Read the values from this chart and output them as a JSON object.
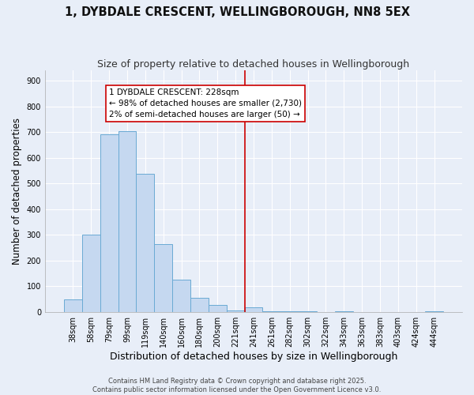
{
  "title": "1, DYBDALE CRESCENT, WELLINGBOROUGH, NN8 5EX",
  "subtitle": "Size of property relative to detached houses in Wellingborough",
  "xlabel": "Distribution of detached houses by size in Wellingborough",
  "ylabel": "Number of detached properties",
  "bar_labels": [
    "38sqm",
    "58sqm",
    "79sqm",
    "99sqm",
    "119sqm",
    "140sqm",
    "160sqm",
    "180sqm",
    "200sqm",
    "221sqm",
    "241sqm",
    "261sqm",
    "282sqm",
    "302sqm",
    "322sqm",
    "343sqm",
    "363sqm",
    "383sqm",
    "403sqm",
    "424sqm",
    "444sqm"
  ],
  "bar_values": [
    47,
    300,
    690,
    705,
    537,
    263,
    125,
    55,
    28,
    5,
    18,
    3,
    1,
    1,
    0,
    1,
    0,
    0,
    0,
    0,
    1
  ],
  "bar_color": "#c5d8f0",
  "bar_edge_color": "#6aaad4",
  "vline_x_index": 9,
  "vline_color": "#cc0000",
  "annotation_title": "1 DYBDALE CRESCENT: 228sqm",
  "annotation_line1": "← 98% of detached houses are smaller (2,730)",
  "annotation_line2": "2% of semi-detached houses are larger (50) →",
  "annotation_box_color": "#ffffff",
  "annotation_box_edge": "#cc0000",
  "ylim": [
    0,
    940
  ],
  "yticks": [
    0,
    100,
    200,
    300,
    400,
    500,
    600,
    700,
    800,
    900
  ],
  "background_color": "#e8eef8",
  "grid_color": "#ffffff",
  "footer_line1": "Contains HM Land Registry data © Crown copyright and database right 2025.",
  "footer_line2": "Contains public sector information licensed under the Open Government Licence v3.0.",
  "title_fontsize": 10.5,
  "subtitle_fontsize": 9,
  "xlabel_fontsize": 9,
  "ylabel_fontsize": 8.5,
  "tick_fontsize": 7,
  "footer_fontsize": 6,
  "ann_fontsize": 7.5
}
